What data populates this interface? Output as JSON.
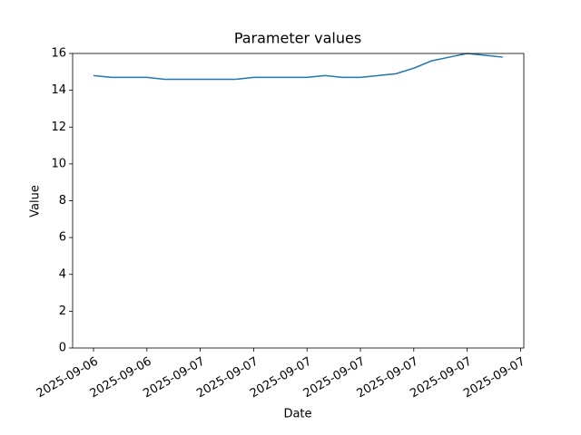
{
  "chart_data": {
    "type": "line",
    "title": "Parameter values",
    "x_label": "Date",
    "y_label": "Value",
    "categories": [
      "2025-09-06",
      null,
      null,
      "2025-09-06",
      null,
      null,
      "2025-09-07",
      null,
      null,
      "2025-09-07",
      null,
      null,
      "2025-09-07",
      null,
      null,
      "2025-09-07",
      null,
      null,
      "2025-09-07",
      null,
      null,
      "2025-09-07",
      null,
      null,
      "2025-09-07"
    ],
    "series": [
      {
        "name": "Value",
        "color": "#1f77b4",
        "values": [
          14.8,
          14.7,
          14.7,
          14.7,
          14.6,
          14.6,
          14.6,
          14.6,
          14.6,
          14.7,
          14.7,
          14.7,
          14.7,
          14.8,
          14.7,
          14.7,
          14.8,
          14.9,
          15.2,
          15.6,
          15.8,
          16.0,
          15.9,
          15.8,
          null
        ]
      }
    ],
    "ylim": [
      0,
      16
    ],
    "yticks": [
      0,
      2,
      4,
      6,
      8,
      10,
      12,
      14,
      16
    ],
    "grid": false
  }
}
